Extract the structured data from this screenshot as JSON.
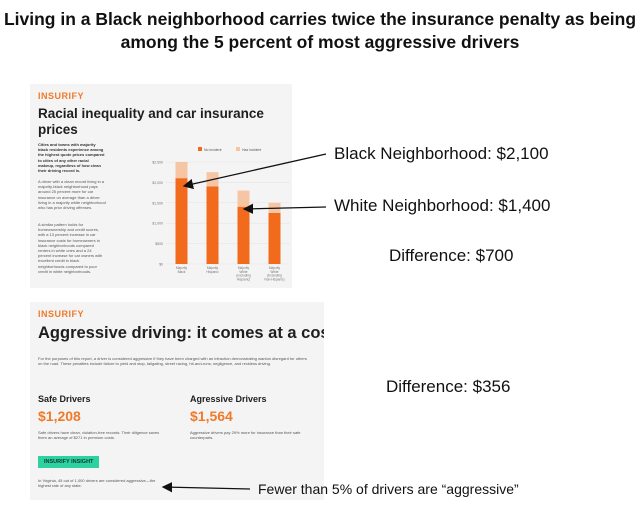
{
  "headline": "Living in a Black neighborhood carries twice the insurance penalty as being among the 5 percent of most aggressive drivers",
  "panel1": {
    "logo": "INSURIFY",
    "title": "Racial inequality and car insurance prices",
    "text1": "Cities and towns with majority black residents experience among the highest quote prices compared to cities of any other racial makeup, regardless of how clean their driving record is.",
    "text2": "A driver with a clean record living in a majority-black neighborhood pays around 25 percent more for car insurance on average than a driver living in a majority white neighborhood who has prior driving offenses.",
    "text3": "A similar pattern holds for homeownership and credit scores, with a 13 percent increase in car insurance costs for homeowners in black neighborhoods compared renters in white ones and a 24 percent increase for car owners with excellent credit in black neighborhoods compared to poor credit in white neighborhoods.",
    "chart": {
      "legend": [
        "No incident",
        "Has incident"
      ],
      "yticks": [
        "$2,500",
        "$2,000",
        "$1,500",
        "$1,000",
        "$500",
        "$0"
      ],
      "categories": [
        "Majority Black",
        "Majority Hispanic",
        "Majority White (excluding Hispanic)",
        "Majority White (Excluding Non-Hispanic)"
      ]
    }
  },
  "panel2": {
    "logo": "INSURIFY",
    "title": "Aggressive driving: it comes at a cost",
    "intro": "For the purposes of this report, a driver is considered aggressive if they have been charged with an infraction demonstrating wanton disregard for others on the road. These penalties include failure to yield and stop, tailgating, street racing, hit-and-runs, negligence, and reckless driving.",
    "safe_title": "Safe Drivers",
    "safe_price": "$1,208",
    "safe_desc": "Safe drivers have clean, violation-free records. Their diligence saves them an average of $271 in premium costs.",
    "agg_title": "Agressive Drivers",
    "agg_price": "$1,564",
    "agg_desc": "Aggressive drivers pay 29% more for insurance than their safe counterparts.",
    "badge": "INSURIFY INSIGHT",
    "insight": "In Virginia, 45 out of 1,000 drivers are considered aggressive—the highest rate of any state."
  },
  "annotations": {
    "black": "Black Neighborhood: $2,100",
    "white": "White Neighborhood: $1,400",
    "diff1": "Difference:  $700",
    "diff2": "Difference:  $356",
    "fewer": "Fewer than 5% of drivers are “aggressive”"
  },
  "chart_data": {
    "type": "bar",
    "categories": [
      "Majority Black",
      "Majority Hispanic",
      "Majority White (excluding Hispanic)",
      "Majority White (Excluding Non-Hispanic)"
    ],
    "series": [
      {
        "name": "No incident",
        "values": [
          2100,
          1900,
          1400,
          1250
        ]
      },
      {
        "name": "Has incident",
        "values": [
          2500,
          2250,
          1800,
          1500
        ]
      }
    ],
    "ylim": [
      0,
      2500
    ],
    "colors": {
      "No incident": "#f26a1b",
      "Has incident": "#f6c5a3"
    }
  }
}
